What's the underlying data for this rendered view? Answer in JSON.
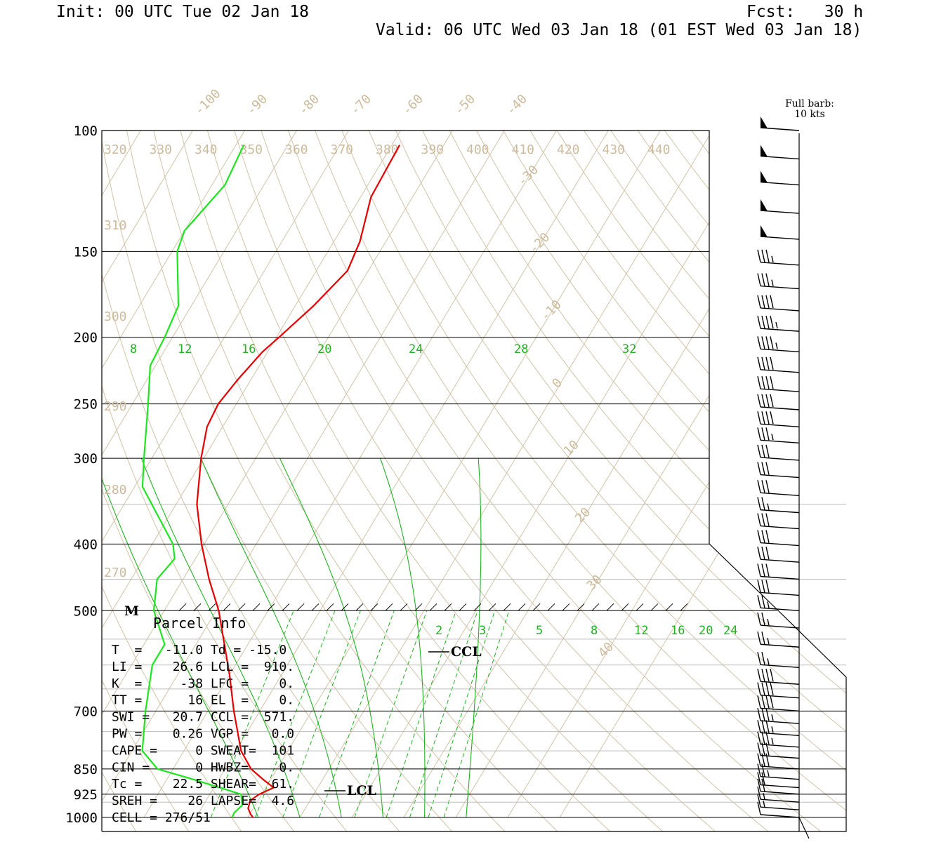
{
  "header": {
    "init": "Init: 00 UTC Tue 02 Jan 18",
    "fcst": "Fcst:   30 h",
    "valid": "Valid: 06 UTC Wed 03 Jan 18 (01 EST Wed 03 Jan 18)"
  },
  "colors": {
    "temperature": "#e60000",
    "dewpoint": "#1ee61e",
    "mixing_ratio": "#1fb31f",
    "isotherm": "#d2c3a8",
    "isobar": "#000000"
  },
  "barb_note": {
    "line1": "Full barb:",
    "line2": "10 kts"
  },
  "chart_data": {
    "type": "skew-t log-p sounding",
    "pressure_labels": [
      "100",
      "150",
      "200",
      "250",
      "300",
      "400",
      "500",
      "700",
      "850",
      "925",
      "1000"
    ],
    "temperature_labels": [
      "-100",
      "-90",
      "-80",
      "-70",
      "-60",
      "-50",
      "-40",
      "-30",
      "-20",
      "-10",
      "0",
      "10",
      "20",
      "30",
      "40"
    ],
    "theta_labels": [
      "320",
      "330",
      "340",
      "350",
      "360",
      "370",
      "380",
      "390",
      "400",
      "410",
      "420",
      "430",
      "440",
      "310",
      "300",
      "290",
      "280",
      "270"
    ],
    "mixing_ratio_labels_upper": [
      "8",
      "12",
      "16",
      "20",
      "24",
      "28",
      "32"
    ],
    "mixing_ratio_labels_lower": [
      "2",
      "3",
      "5",
      "8",
      "12",
      "16",
      "20",
      "24"
    ],
    "level_markers": {
      "lcl": "LCL",
      "ccl": "CCL",
      "melting": "M"
    },
    "temperature_profile": [
      {
        "p": 1000,
        "t": -9.0
      },
      {
        "p": 990,
        "t": -9.8
      },
      {
        "p": 970,
        "t": -11.0
      },
      {
        "p": 945,
        "t": -11.5
      },
      {
        "p": 925,
        "t": -10.5
      },
      {
        "p": 905,
        "t": -8.5
      },
      {
        "p": 880,
        "t": -11.5
      },
      {
        "p": 850,
        "t": -15.0
      },
      {
        "p": 800,
        "t": -19.0
      },
      {
        "p": 700,
        "t": -25.0
      },
      {
        "p": 620,
        "t": -30.0
      },
      {
        "p": 560,
        "t": -34.5
      },
      {
        "p": 500,
        "t": -39.5
      },
      {
        "p": 450,
        "t": -45.0
      },
      {
        "p": 400,
        "t": -50.5
      },
      {
        "p": 350,
        "t": -56.0
      },
      {
        "p": 300,
        "t": -60.5
      },
      {
        "p": 270,
        "t": -63.0
      },
      {
        "p": 250,
        "t": -63.5
      },
      {
        "p": 230,
        "t": -62.5
      },
      {
        "p": 210,
        "t": -61.0
      },
      {
        "p": 200,
        "t": -59.5
      },
      {
        "p": 180,
        "t": -56.5
      },
      {
        "p": 160,
        "t": -54.0
      },
      {
        "p": 145,
        "t": -55.0
      },
      {
        "p": 125,
        "t": -58.0
      },
      {
        "p": 105,
        "t": -58.5
      }
    ],
    "dewpoint_profile": [
      {
        "p": 1000,
        "t": -13.0
      },
      {
        "p": 985,
        "t": -13.2
      },
      {
        "p": 960,
        "t": -12.5
      },
      {
        "p": 925,
        "t": -14.0
      },
      {
        "p": 880,
        "t": -25.0
      },
      {
        "p": 850,
        "t": -33.0
      },
      {
        "p": 800,
        "t": -38.0
      },
      {
        "p": 700,
        "t": -42.0
      },
      {
        "p": 600,
        "t": -46.0
      },
      {
        "p": 560,
        "t": -46.0
      },
      {
        "p": 500,
        "t": -52.0
      },
      {
        "p": 450,
        "t": -55.0
      },
      {
        "p": 420,
        "t": -54.0
      },
      {
        "p": 400,
        "t": -56.0
      },
      {
        "p": 330,
        "t": -68.5
      },
      {
        "p": 300,
        "t": -71.5
      },
      {
        "p": 250,
        "t": -77.0
      },
      {
        "p": 220,
        "t": -81.0
      },
      {
        "p": 200,
        "t": -81.5
      },
      {
        "p": 180,
        "t": -82.5
      },
      {
        "p": 150,
        "t": -89.0
      },
      {
        "p": 140,
        "t": -90.0
      },
      {
        "p": 120,
        "t": -87.5
      },
      {
        "p": 105,
        "t": -88.5
      }
    ],
    "wind_barbs": [
      {
        "p": 100,
        "kts": 50
      },
      {
        "p": 110,
        "kts": 50
      },
      {
        "p": 120,
        "kts": 50
      },
      {
        "p": 132,
        "kts": 50
      },
      {
        "p": 144,
        "kts": 50
      },
      {
        "p": 157,
        "kts": 35
      },
      {
        "p": 170,
        "kts": 35
      },
      {
        "p": 183,
        "kts": 40
      },
      {
        "p": 196,
        "kts": 45
      },
      {
        "p": 210,
        "kts": 45
      },
      {
        "p": 225,
        "kts": 40
      },
      {
        "p": 240,
        "kts": 40
      },
      {
        "p": 255,
        "kts": 40
      },
      {
        "p": 270,
        "kts": 40
      },
      {
        "p": 285,
        "kts": 35
      },
      {
        "p": 302,
        "kts": 30
      },
      {
        "p": 320,
        "kts": 30
      },
      {
        "p": 340,
        "kts": 30
      },
      {
        "p": 360,
        "kts": 25
      },
      {
        "p": 380,
        "kts": 30
      },
      {
        "p": 402,
        "kts": 30
      },
      {
        "p": 425,
        "kts": 30
      },
      {
        "p": 450,
        "kts": 30
      },
      {
        "p": 475,
        "kts": 30
      },
      {
        "p": 500,
        "kts": 25
      },
      {
        "p": 530,
        "kts": 25
      },
      {
        "p": 565,
        "kts": 25
      },
      {
        "p": 605,
        "kts": 25
      },
      {
        "p": 640,
        "kts": 40
      },
      {
        "p": 670,
        "kts": 40
      },
      {
        "p": 700,
        "kts": 40
      },
      {
        "p": 730,
        "kts": 35
      },
      {
        "p": 760,
        "kts": 35
      },
      {
        "p": 790,
        "kts": 35
      },
      {
        "p": 820,
        "kts": 30
      },
      {
        "p": 850,
        "kts": 30
      },
      {
        "p": 880,
        "kts": 25
      },
      {
        "p": 905,
        "kts": 20
      },
      {
        "p": 925,
        "kts": 20
      },
      {
        "p": 950,
        "kts": 15
      },
      {
        "p": 975,
        "kts": 15
      },
      {
        "p": 1000,
        "kts": 10
      }
    ]
  },
  "parcel_info": {
    "title": "Parcel Info",
    "rows": [
      "T  =   -11.0 Td = -15.0",
      "LI =    26.6 LCL =  910.",
      "K  =     -38 LFC =    0.",
      "TT =      16 EL  =    0.",
      "SWI =   20.7 CCL =  571.",
      "PW =    0.26 VGP =   0.0",
      "CAPE =     0 SWEAT=  101",
      "CIN =      0 HWBZ=    0.",
      "Tc =    22.5 SHEAR=  61.",
      "SREH =    26 LAPSE=  4.6",
      "CELL = 276/51"
    ]
  }
}
